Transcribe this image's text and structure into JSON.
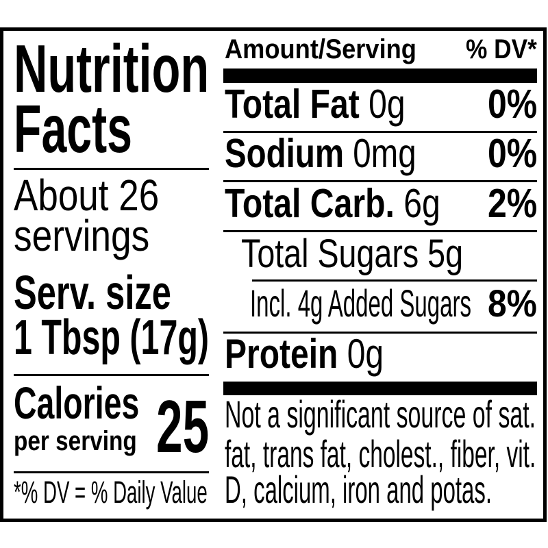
{
  "label": {
    "title_line1": "Nutrition",
    "title_line2": "Facts",
    "servings_line1": "About 26",
    "servings_line2": "servings",
    "serving_size_label": "Serv. size",
    "serving_size_value": "1 Tbsp (17g)",
    "calories_label": "Calories",
    "calories_sublabel": "per serving",
    "calories_value": "25",
    "dv_footnote": "*% DV = % Daily Value",
    "header": {
      "amount": "Amount/Serving",
      "dv": "% DV*"
    },
    "nutrients": [
      {
        "name": "Total Fat",
        "amount": "0g",
        "dv": "0%"
      },
      {
        "name": "Sodium",
        "amount": "0mg",
        "dv": "0%"
      },
      {
        "name": "Total Carb.",
        "amount": "6g",
        "dv": "2%"
      },
      {
        "name": "Total Sugars 5g"
      },
      {
        "name": "Incl. 4g Added Sugars",
        "dv": "8%"
      },
      {
        "name": "Protein",
        "amount": "0g"
      }
    ],
    "footnote_lines": [
      "Not a significant source of sat.",
      "fat, trans fat, cholest., fiber, vit.",
      "D, calcium, iron and potas."
    ]
  }
}
